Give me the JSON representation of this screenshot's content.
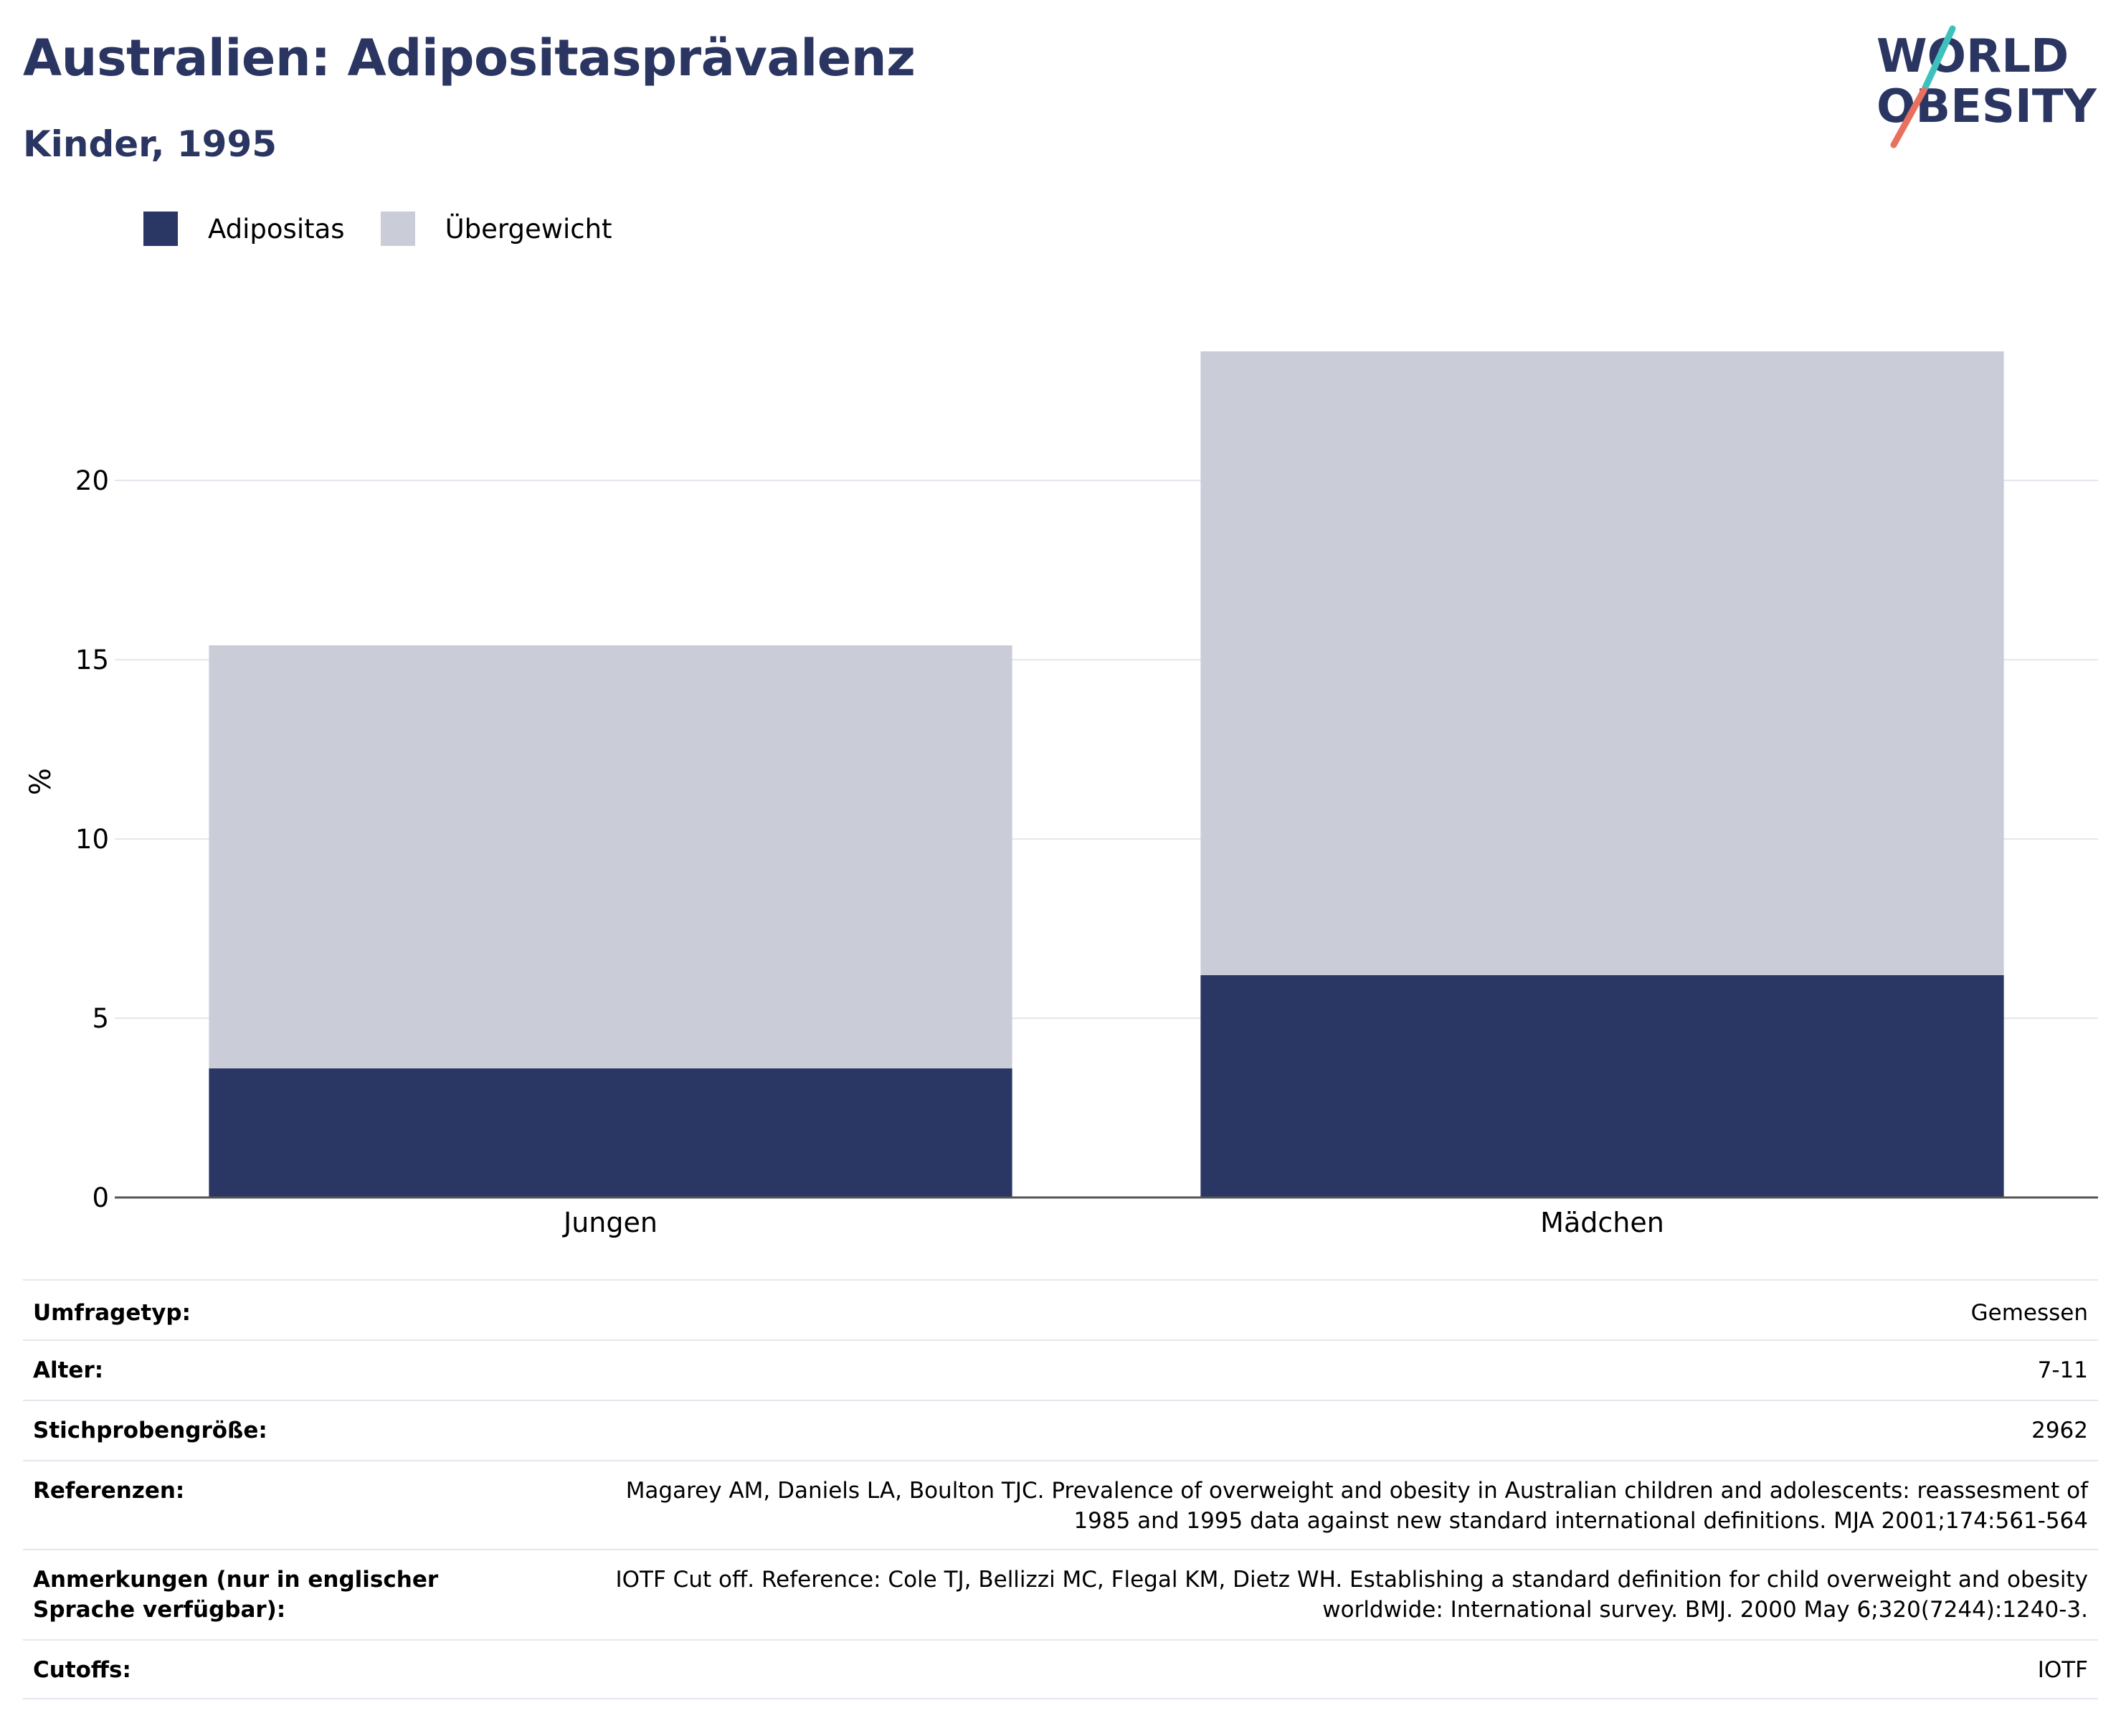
{
  "header": {
    "title": "Australien: Adipositasprävalenz",
    "subtitle": "Kinder, 1995"
  },
  "logo": {
    "line1": "WORLD",
    "line2": "OBESITY"
  },
  "colors": {
    "title": "#2a3561",
    "adipositas": "#2a3663",
    "uebergewicht": "#caccd8",
    "grid": "#e6e6ee",
    "axis": "#555555",
    "logo_text": "#2a3561",
    "logo_teal": "#3ec1bd",
    "logo_coral": "#e8705f"
  },
  "chart_data": {
    "type": "bar",
    "stacked": true,
    "categories": [
      "Jungen",
      "Mädchen"
    ],
    "series": [
      {
        "name": "Adipositas",
        "values": [
          3.6,
          6.2
        ]
      },
      {
        "name": "Übergewicht",
        "values": [
          11.8,
          17.4
        ]
      }
    ],
    "ylabel": "%",
    "ylim": [
      0,
      25
    ],
    "yticks": [
      0,
      5,
      10,
      15,
      20
    ],
    "grid": true,
    "legend": "top-left"
  },
  "info": [
    {
      "label": "Umfragetyp:",
      "value": "Gemessen"
    },
    {
      "label": "Alter:",
      "value": "7-11"
    },
    {
      "label": "Stichprobengröße:",
      "value": "2962"
    },
    {
      "label": "Referenzen:",
      "value": "Magarey AM, Daniels LA, Boulton TJC. Prevalence of overweight and obesity in Australian children and adolescents: reassesment of 1985 and 1995 data against new standard international definitions. MJA 2001;174:561-564"
    },
    {
      "label": "Anmerkungen (nur in englischer Sprache verfügbar):",
      "value": "IOTF Cut off. Reference: Cole TJ, Bellizzi MC, Flegal KM, Dietz WH. Establishing a standard definition for child overweight and obesity worldwide: International survey. BMJ. 2000 May 6;320(7244):1240-3."
    },
    {
      "label": "Cutoffs:",
      "value": "IOTF"
    }
  ]
}
